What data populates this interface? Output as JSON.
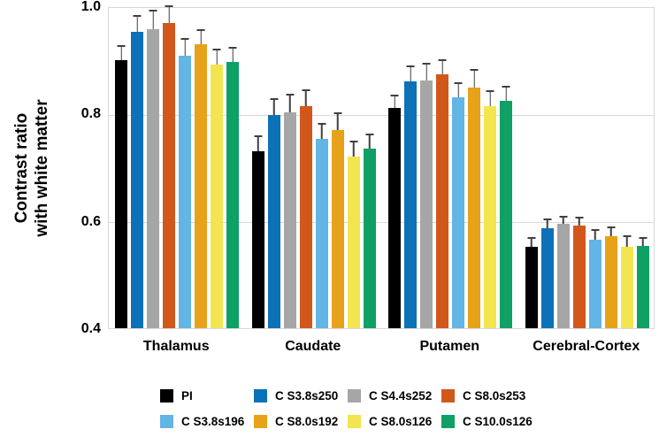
{
  "figure": {
    "y_axis_title_line1": "Contrast ratio",
    "y_axis_title_line2": "with white matter"
  },
  "colors": {
    "grid": "#d8d8d8",
    "plot_border": "#d8d8d8",
    "error_bar": "#404040",
    "text": "#000000",
    "background": "#ffffff"
  },
  "chart_data": {
    "type": "bar",
    "title": "",
    "xlabel": "",
    "ylabel": "Contrast ratio with white matter",
    "ylim": [
      0.4,
      1.0
    ],
    "yticks": [
      {
        "value": 1.0,
        "label": "1.0"
      },
      {
        "value": 0.8,
        "label": "0.8"
      },
      {
        "value": 0.6,
        "label": "0.6"
      },
      {
        "value": 0.4,
        "label": "0.4"
      }
    ],
    "grid": "horizontal-at-ticks",
    "error_bars": "upper-only-with-caps",
    "legend_position": "bottom-2-rows-4-columns",
    "categories": [
      "Thalamus",
      "Caudate",
      "Putamen",
      "Cerebral-Cortex"
    ],
    "series": [
      {
        "name": "PI",
        "color": "#000000",
        "values": [
          0.9,
          0.73,
          0.81,
          0.552
        ],
        "errors": [
          0.027,
          0.03,
          0.026,
          0.018
        ]
      },
      {
        "name": "C S3.8s250",
        "color": "#0c71b7",
        "values": [
          0.952,
          0.797,
          0.86,
          0.587
        ],
        "errors": [
          0.032,
          0.031,
          0.029,
          0.018
        ]
      },
      {
        "name": "C S4.4s252",
        "color": "#a6a6a6",
        "values": [
          0.957,
          0.802,
          0.862,
          0.594
        ],
        "errors": [
          0.037,
          0.035,
          0.032,
          0.015
        ]
      },
      {
        "name": "C S8.0s253",
        "color": "#d2571b",
        "values": [
          0.969,
          0.814,
          0.873,
          0.592
        ],
        "errors": [
          0.032,
          0.031,
          0.028,
          0.016
        ]
      },
      {
        "name": "C S3.8s196",
        "color": "#62b5e5",
        "values": [
          0.907,
          0.752,
          0.83,
          0.565
        ],
        "errors": [
          0.033,
          0.03,
          0.029,
          0.019
        ]
      },
      {
        "name": "C S8.0s192",
        "color": "#e7a21a",
        "values": [
          0.929,
          0.77,
          0.848,
          0.571
        ],
        "errors": [
          0.029,
          0.033,
          0.035,
          0.018
        ]
      },
      {
        "name": "C S8.0s126",
        "color": "#f2e550",
        "values": [
          0.892,
          0.72,
          0.814,
          0.552
        ],
        "errors": [
          0.029,
          0.029,
          0.029,
          0.021
        ]
      },
      {
        "name": "C S10.0s126",
        "color": "#0fa065",
        "values": [
          0.896,
          0.735,
          0.824,
          0.553
        ],
        "errors": [
          0.028,
          0.027,
          0.028,
          0.017
        ]
      }
    ]
  }
}
